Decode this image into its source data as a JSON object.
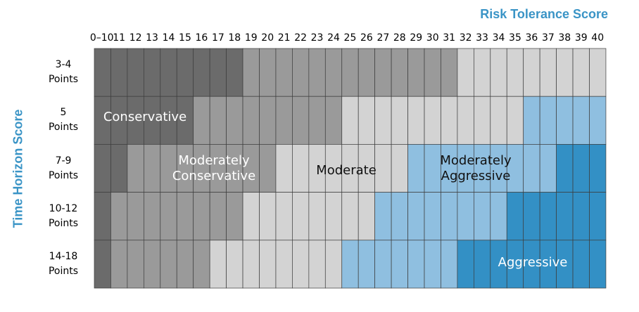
{
  "titles": {
    "x_axis": "Risk Tolerance Score",
    "y_axis": "Time Horizon Score"
  },
  "columns": [
    "0–10",
    "11",
    "12",
    "13",
    "14",
    "15",
    "16",
    "17",
    "18",
    "19",
    "20",
    "21",
    "22",
    "23",
    "24",
    "25",
    "26",
    "27",
    "28",
    "29",
    "30",
    "31",
    "32",
    "33",
    "34",
    "35",
    "36",
    "37",
    "38",
    "39",
    "40"
  ],
  "rows": [
    {
      "label_line1": "3-4",
      "label_line2": "Points"
    },
    {
      "label_line1": "5",
      "label_line2": "Points"
    },
    {
      "label_line1": "7-9",
      "label_line2": "Points"
    },
    {
      "label_line1": "10-12",
      "label_line2": "Points"
    },
    {
      "label_line1": "14-18",
      "label_line2": "Points"
    }
  ],
  "zones": {
    "conservative": {
      "label": "Conservative",
      "color": "#6b6b6b"
    },
    "moderately_conservative": {
      "label_line1": "Moderately",
      "label_line2": "Conservative",
      "color": "#9a9a9a"
    },
    "moderate": {
      "label": "Moderate",
      "color": "#d3d3d3"
    },
    "moderately_aggressive": {
      "label_line1": "Moderately",
      "label_line2": "Aggressive",
      "color": "#8fbfe0"
    },
    "aggressive": {
      "label": "Aggressive",
      "color": "#3390c5"
    }
  },
  "zone_by_row_last_column": {
    "note_free": true,
    "rows": [
      {
        "conservative": "18",
        "moderately_conservative": "31",
        "moderate": "40"
      },
      {
        "conservative": "15",
        "moderately_conservative": "24",
        "moderate": "35",
        "moderately_aggressive": "40"
      },
      {
        "conservative": "11",
        "moderately_conservative": "20",
        "moderate": "28",
        "moderately_aggressive": "37",
        "aggressive": "40"
      },
      {
        "conservative": "0–10",
        "moderately_conservative": "18",
        "moderate": "26",
        "moderately_aggressive": "34",
        "aggressive": "40"
      },
      {
        "conservative": "0–10",
        "moderately_conservative": "16",
        "moderate": "24",
        "moderately_aggressive": "31",
        "aggressive": "40"
      }
    ]
  }
}
